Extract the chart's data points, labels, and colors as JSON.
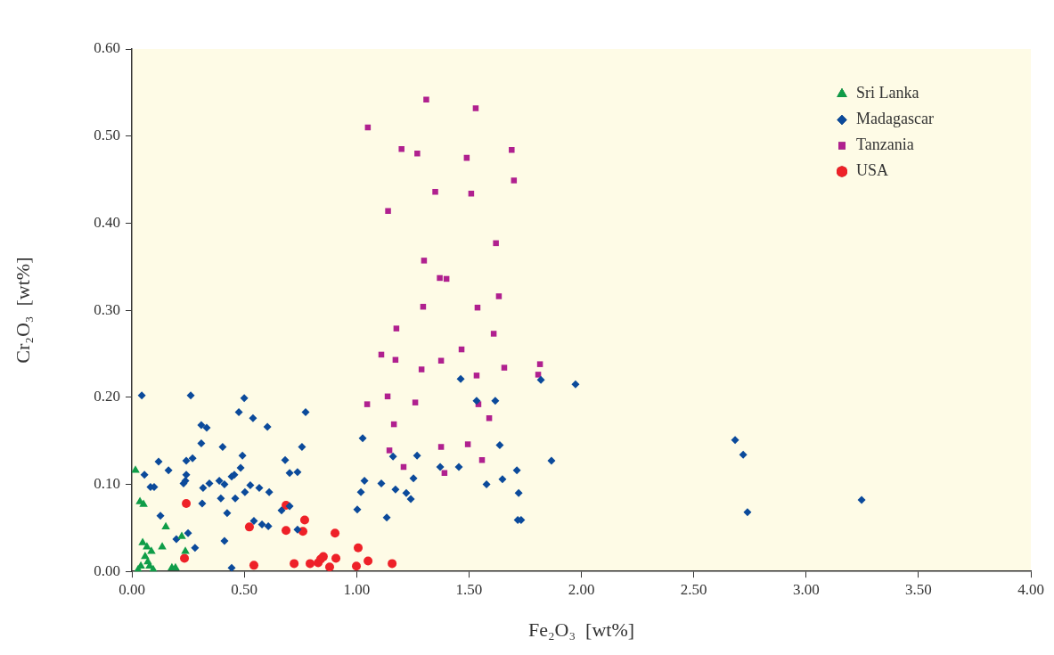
{
  "chart_data": {
    "type": "scatter",
    "xlabel": "Fe₂O₃  [wt%]",
    "ylabel": "Cr₂O₃  [wt%]",
    "xlim": [
      0,
      4
    ],
    "ylim": [
      0,
      0.6
    ],
    "xticks": [
      {
        "value": 0,
        "label": "0.00"
      },
      {
        "value": 0.5,
        "label": "0.50"
      },
      {
        "value": 1,
        "label": "1.00"
      },
      {
        "value": 1.5,
        "label": "1.50"
      },
      {
        "value": 2,
        "label": "2.00"
      },
      {
        "value": 2.5,
        "label": "2.50"
      },
      {
        "value": 3,
        "label": "3.00"
      },
      {
        "value": 3.5,
        "label": "3.50"
      },
      {
        "value": 4,
        "label": "4.00"
      }
    ],
    "yticks": [
      {
        "value": 0,
        "label": "0.00"
      },
      {
        "value": 0.1,
        "label": "0.10"
      },
      {
        "value": 0.2,
        "label": "0.20"
      },
      {
        "value": 0.3,
        "label": "0.30"
      },
      {
        "value": 0.4,
        "label": "0.40"
      },
      {
        "value": 0.5,
        "label": "0.50"
      },
      {
        "value": 0.6,
        "label": "0.60"
      }
    ],
    "grid": false,
    "legend": "top right",
    "series": [
      {
        "name": "Sri Lanka",
        "color": "#0f9d48",
        "marker": "triangle",
        "x": [
          0.016,
          0.036,
          0.052,
          0.048,
          0.067,
          0.059,
          0.087,
          0.079,
          0.071,
          0.151,
          0.135,
          0.222,
          0.238,
          0.178,
          0.194,
          0.04,
          0.095,
          0.028
        ],
        "values": [
          0.116,
          0.08,
          0.077,
          0.033,
          0.028,
          0.017,
          0.023,
          0.006,
          0.011,
          0.051,
          0.028,
          0.04,
          0.023,
          0.004,
          0.004,
          0.006,
          0.002,
          0.002
        ]
      },
      {
        "name": "Madagascar",
        "color": "#0b4a9b",
        "marker": "diamond",
        "x": [
          0.044,
          0.262,
          0.5,
          0.476,
          0.539,
          0.603,
          0.773,
          0.309,
          0.333,
          0.309,
          0.404,
          0.757,
          1.027,
          0.119,
          0.163,
          0.242,
          0.27,
          0.492,
          0.484,
          0.682,
          0.702,
          0.737,
          0.056,
          0.083,
          0.099,
          0.242,
          0.238,
          0.23,
          0.317,
          0.345,
          0.389,
          0.412,
          0.444,
          0.456,
          0.527,
          0.567,
          0.611,
          0.503,
          0.396,
          0.46,
          0.313,
          0.424,
          0.127,
          0.666,
          0.702,
          0.543,
          0.579,
          0.607,
          0.737,
          0.25,
          0.198,
          0.281,
          0.412,
          0.444,
          1.035,
          1.019,
          1.11,
          1.162,
          1.269,
          1.173,
          1.253,
          1.221,
          1.241,
          1.003,
          1.134,
          1.463,
          1.534,
          1.617,
          1.82,
          1.974,
          1.637,
          1.867,
          1.372,
          1.455,
          1.713,
          1.578,
          1.649,
          1.721,
          1.717,
          1.732,
          2.684,
          2.72,
          2.739,
          3.247
        ],
        "values": [
          0.202,
          0.202,
          0.199,
          0.183,
          0.176,
          0.166,
          0.183,
          0.168,
          0.165,
          0.147,
          0.143,
          0.143,
          0.153,
          0.126,
          0.116,
          0.127,
          0.13,
          0.133,
          0.119,
          0.128,
          0.113,
          0.114,
          0.111,
          0.097,
          0.097,
          0.111,
          0.104,
          0.101,
          0.096,
          0.101,
          0.104,
          0.1,
          0.109,
          0.111,
          0.099,
          0.096,
          0.091,
          0.091,
          0.084,
          0.084,
          0.078,
          0.067,
          0.064,
          0.07,
          0.075,
          0.058,
          0.054,
          0.052,
          0.048,
          0.044,
          0.037,
          0.027,
          0.035,
          0.004,
          0.104,
          0.091,
          0.101,
          0.132,
          0.133,
          0.094,
          0.107,
          0.09,
          0.083,
          0.071,
          0.062,
          0.221,
          0.196,
          0.196,
          0.22,
          0.215,
          0.145,
          0.127,
          0.12,
          0.12,
          0.116,
          0.1,
          0.106,
          0.09,
          0.059,
          0.059,
          0.151,
          0.134,
          0.068,
          0.082
        ]
      },
      {
        "name": "Tanzania",
        "color": "#b0208f",
        "marker": "square",
        "x": [
          1.05,
          1.31,
          1.53,
          1.2,
          1.27,
          1.49,
          1.69,
          1.7,
          1.35,
          1.51,
          1.14,
          1.62,
          1.3,
          1.37,
          1.4,
          1.633,
          1.296,
          1.538,
          1.177,
          1.61,
          1.11,
          1.467,
          1.173,
          1.376,
          1.289,
          1.657,
          1.816,
          1.808,
          1.534,
          1.261,
          1.542,
          1.166,
          1.59,
          1.376,
          1.495,
          1.558,
          1.209,
          1.391,
          1.047,
          1.138,
          1.146
        ],
        "values": [
          0.51,
          0.542,
          0.532,
          0.485,
          0.48,
          0.475,
          0.484,
          0.449,
          0.436,
          0.434,
          0.414,
          0.377,
          0.357,
          0.337,
          0.336,
          0.316,
          0.304,
          0.303,
          0.279,
          0.273,
          0.249,
          0.255,
          0.243,
          0.242,
          0.232,
          0.234,
          0.238,
          0.226,
          0.225,
          0.194,
          0.192,
          0.169,
          0.176,
          0.143,
          0.146,
          0.128,
          0.12,
          0.113,
          0.192,
          0.201,
          0.139
        ]
      },
      {
        "name": "USA",
        "color": "#ee2128",
        "marker": "circle",
        "x": [
          0.242,
          0.234,
          0.523,
          0.543,
          0.686,
          0.686,
          0.769,
          0.761,
          0.904,
          0.722,
          0.793,
          0.829,
          0.84,
          0.852,
          0.88,
          0.908,
          0.999,
          1.007,
          1.051,
          1.158
        ],
        "values": [
          0.078,
          0.015,
          0.051,
          0.007,
          0.076,
          0.047,
          0.059,
          0.046,
          0.044,
          0.009,
          0.009,
          0.01,
          0.014,
          0.017,
          0.005,
          0.015,
          0.006,
          0.027,
          0.012,
          0.009
        ]
      }
    ]
  }
}
